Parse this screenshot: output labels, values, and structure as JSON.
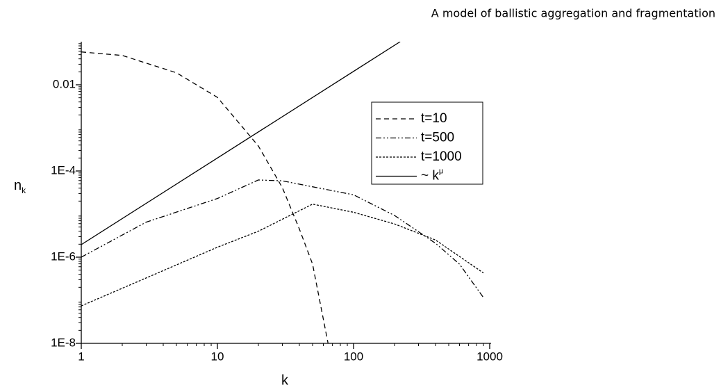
{
  "header": "A model of ballistic aggregation and fragmentation",
  "chart_data": {
    "type": "line",
    "xlabel": "k",
    "ylabel": "n",
    "ylabel_sub": "k",
    "log_x": true,
    "log_y": true,
    "xlim": [
      1,
      1000
    ],
    "xticks": [
      1,
      10,
      100,
      1000
    ],
    "ylim": [
      1e-08,
      0.1
    ],
    "yticks": [
      {
        "value": 1e-08,
        "label": "1E-8"
      },
      {
        "value": 1e-06,
        "label": "1E-6"
      },
      {
        "value": 0.0001,
        "label": "1E-4"
      },
      0.01
    ],
    "legend": "upper right",
    "series": [
      {
        "name": "t=10",
        "color": "#000000",
        "style": "dashed",
        "x": [
          1,
          2,
          5,
          10,
          20,
          30,
          40,
          50,
          65
        ],
        "values": [
          0.058,
          0.048,
          0.019,
          0.0051,
          0.00038,
          4.1e-05,
          4.5e-06,
          6.9e-07,
          1e-08
        ]
      },
      {
        "name": "t=500",
        "color": "#000000",
        "style": "dashdot",
        "x": [
          1,
          3,
          10,
          20,
          30,
          100,
          200,
          400,
          600,
          900
        ],
        "values": [
          1e-06,
          6.5e-06,
          2.3e-05,
          6.2e-05,
          5.9e-05,
          2.8e-05,
          9.3e-06,
          2.1e-06,
          6.9e-07,
          1.15e-07
        ]
      },
      {
        "name": "t=1000",
        "color": "#000000",
        "style": "dotted",
        "x": [
          1,
          3,
          10,
          20,
          50,
          100,
          200,
          400,
          900
        ],
        "values": [
          7.4e-08,
          3.3e-07,
          1.7e-06,
          4e-06,
          1.7e-05,
          1.1e-05,
          5.9e-06,
          2.5e-06,
          4.3e-07
        ]
      },
      {
        "name": "~ k",
        "name_sup": "μ",
        "color": "#000000",
        "style": "solid",
        "x": [
          1,
          220
        ],
        "values": [
          1.95e-06,
          0.1
        ]
      }
    ]
  }
}
